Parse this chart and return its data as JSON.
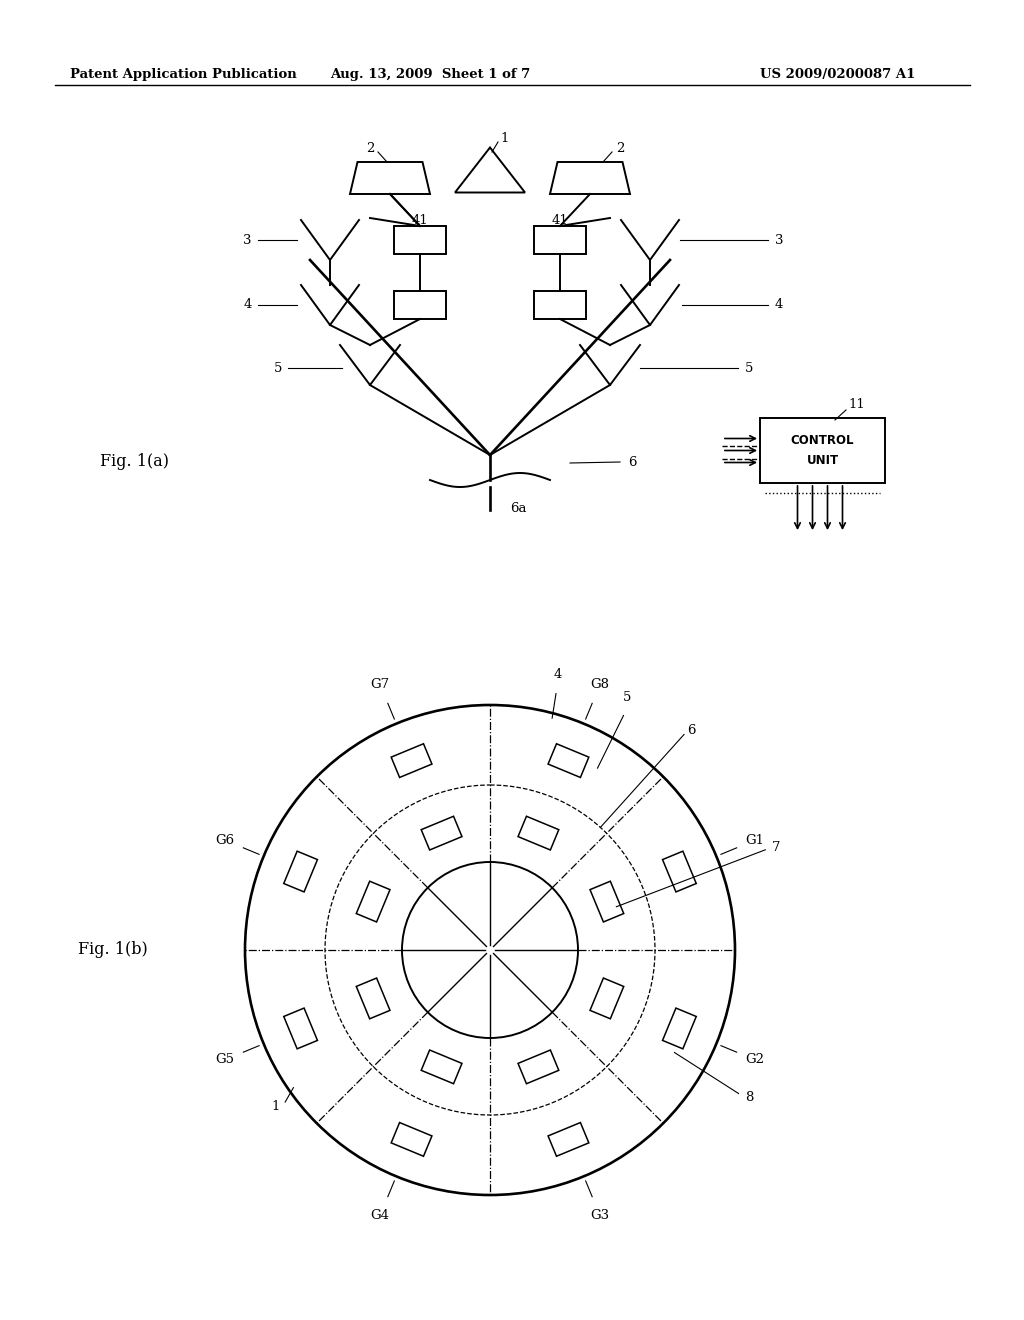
{
  "bg_color": "#ffffff",
  "line_color": "#000000",
  "header_left": "Patent Application Publication",
  "header_mid": "Aug. 13, 2009  Sheet 1 of 7",
  "header_right": "US 2009/0200087 A1",
  "fig_label_a": "Fig. 1(a)",
  "fig_label_b": "Fig. 1(b)",
  "group_labels": [
    "G1",
    "G2",
    "G3",
    "G4",
    "G5",
    "G6",
    "G7",
    "G8"
  ]
}
